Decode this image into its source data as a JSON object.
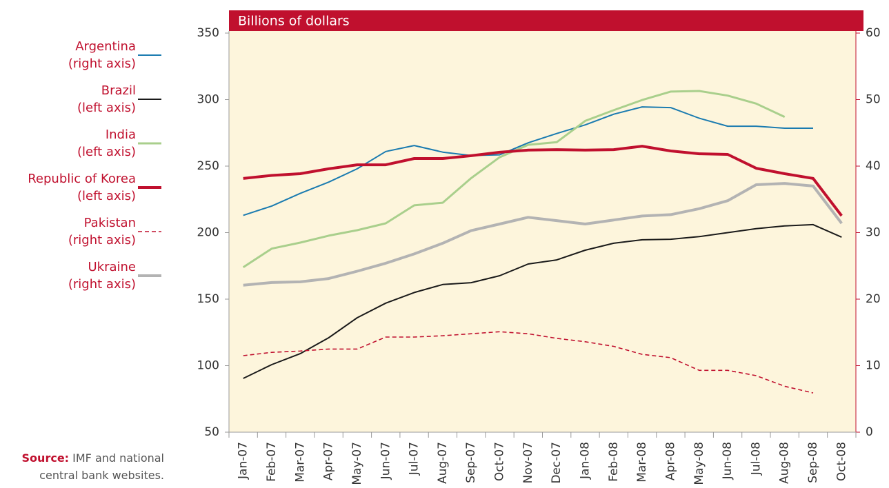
{
  "chart_data": {
    "type": "line",
    "title": "Billions of dollars",
    "categories": [
      "Jan-07",
      "Feb-07",
      "Mar-07",
      "Apr-07",
      "May-07",
      "Jun-07",
      "Jul-07",
      "Aug-07",
      "Sep-07",
      "Oct-07",
      "Nov-07",
      "Dec-07",
      "Jan-08",
      "Feb-08",
      "Mar-08",
      "Apr-08",
      "May-08",
      "Jun-08",
      "Jul-08",
      "Aug-08",
      "Sep-08",
      "Oct-08"
    ],
    "ylim": [
      50,
      350
    ],
    "yticks": [
      50,
      100,
      150,
      200,
      250,
      300,
      350
    ],
    "y2lim": [
      0,
      60
    ],
    "y2ticks": [
      0,
      10,
      20,
      30,
      40,
      50,
      60
    ],
    "grid": false,
    "legend": "left",
    "series": [
      {
        "name": "Argentina",
        "axis_note": "(right axis)",
        "axis": "y2",
        "color": "#1a7bb0",
        "line_width": 2,
        "values": [
          32.6,
          34.0,
          35.9,
          37.6,
          39.6,
          42.2,
          43.1,
          42.1,
          41.6,
          41.7,
          43.5,
          44.9,
          46.2,
          47.8,
          48.9,
          48.8,
          47.2,
          46.0,
          46.0,
          45.7,
          45.7,
          null
        ]
      },
      {
        "name": "Brazil",
        "axis_note": "(left axis)",
        "axis": "y",
        "color": "#1a1a1a",
        "line_width": 2,
        "values": [
          90.4,
          100.8,
          109,
          121,
          136,
          147,
          155,
          161,
          162.4,
          167.6,
          176.4,
          179.5,
          186.8,
          192,
          194.6,
          195,
          197,
          200,
          203,
          205,
          206,
          196.6
        ]
      },
      {
        "name": "India",
        "axis_note": "(left axis)",
        "axis": "y",
        "color": "#a9cf8c",
        "line_width": 3,
        "values": [
          174,
          188,
          192.5,
          197.7,
          201.8,
          207,
          220.5,
          222.5,
          241,
          256.7,
          266,
          268,
          284,
          292,
          299.7,
          306,
          306.5,
          303,
          297,
          287,
          null,
          null
        ]
      },
      {
        "name": "Republic of Korea",
        "axis_note": "(left axis)",
        "axis": "y",
        "color": "#c0102e",
        "line_width": 4,
        "values": [
          240.7,
          243,
          244.3,
          248,
          251,
          251,
          255.7,
          255.7,
          257.8,
          260.4,
          262,
          262.4,
          262,
          262.4,
          265,
          261.4,
          259.3,
          258.8,
          248.4,
          244.3,
          240.7,
          212.7
        ]
      },
      {
        "name": "Pakistan",
        "axis_note": "(right axis)",
        "axis": "y2",
        "color": "#c0102e",
        "line_width": 1.6,
        "dashed": true,
        "values": [
          11.5,
          12.0,
          12.2,
          12.5,
          12.5,
          14.3,
          14.3,
          14.5,
          14.8,
          15.1,
          14.8,
          14.1,
          13.6,
          12.9,
          11.7,
          11.2,
          9.3,
          9.3,
          8.5,
          6.9,
          5.9,
          null
        ]
      },
      {
        "name": "Ukraine",
        "axis_note": "(right axis)",
        "axis": "y2",
        "color": "#b3b3b3",
        "line_width": 4,
        "values": [
          22.1,
          22.5,
          22.6,
          23.1,
          24.2,
          25.4,
          26.8,
          28.4,
          30.3,
          31.3,
          32.3,
          31.8,
          31.3,
          31.9,
          32.5,
          32.7,
          33.6,
          34.8,
          37.2,
          37.4,
          37.0,
          31.4
        ]
      }
    ],
    "source": {
      "label": "Source:",
      "text": "IMF and national central bank websites."
    }
  }
}
